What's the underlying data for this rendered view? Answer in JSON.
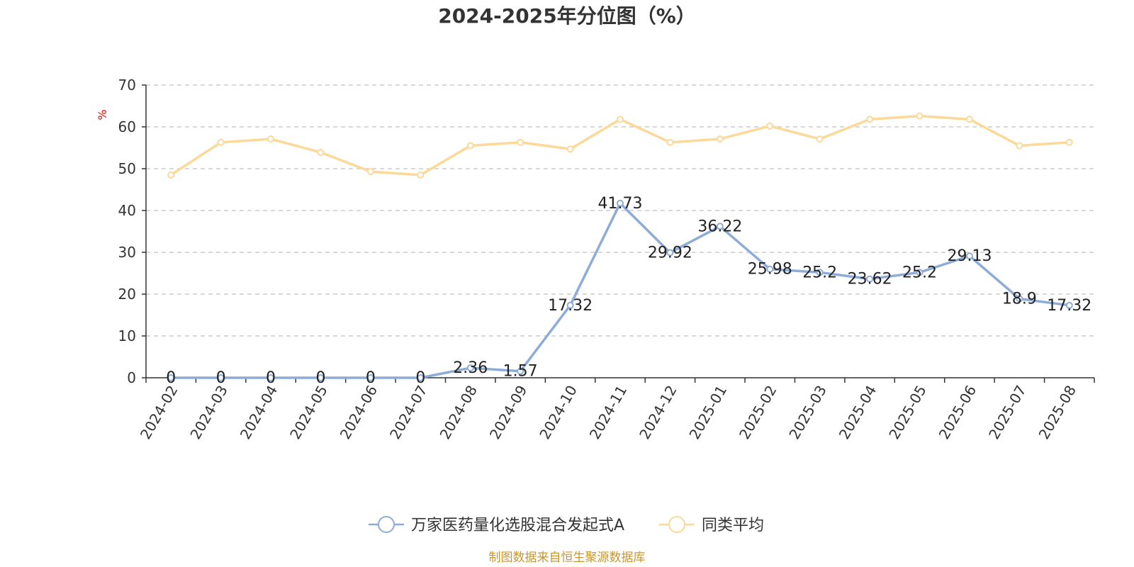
{
  "chart_data": {
    "type": "line",
    "title": "2024-2025年分位图（%）",
    "ylabel": "%",
    "ylim": [
      0,
      70
    ],
    "yticks": [
      0,
      10,
      20,
      30,
      40,
      50,
      60,
      70
    ],
    "grid": true,
    "legend_position": "bottom",
    "categories": [
      "2024-02",
      "2024-03",
      "2024-04",
      "2024-05",
      "2024-06",
      "2024-07",
      "2024-08",
      "2024-09",
      "2024-10",
      "2024-11",
      "2024-12",
      "2025-01",
      "2025-02",
      "2025-03",
      "2025-04",
      "2025-05",
      "2025-06",
      "2025-07",
      "2025-08"
    ],
    "series": [
      {
        "name": "万家医药量化选股混合发起式A",
        "color": "#8eacd8",
        "values": [
          0,
          0,
          0,
          0,
          0,
          0,
          2.36,
          1.57,
          17.32,
          41.73,
          29.92,
          36.22,
          25.98,
          25.2,
          23.62,
          25.2,
          29.13,
          18.9,
          17.32
        ],
        "labels": [
          "0",
          "0",
          "0",
          "0",
          "0",
          "0",
          "2.36",
          "1.57",
          "17.32",
          "41.73",
          "29.92",
          "36.22",
          "25.98",
          "25.2",
          "23.62",
          "25.2",
          "29.13",
          "18.9",
          "17.32"
        ]
      },
      {
        "name": "同类平均",
        "color": "#fcd899",
        "values": [
          48.5,
          56.3,
          57.1,
          53.9,
          49.3,
          48.5,
          55.5,
          56.3,
          54.7,
          61.8,
          56.3,
          57.1,
          60.2,
          57.1,
          61.8,
          62.6,
          61.8,
          55.5,
          56.3
        ]
      }
    ],
    "source": "制图数据来自恒生聚源数据库",
    "colors": {
      "axis": "#333333",
      "grid": "#cccccc",
      "unit": "#ff0000",
      "source": "#c8962e"
    }
  }
}
